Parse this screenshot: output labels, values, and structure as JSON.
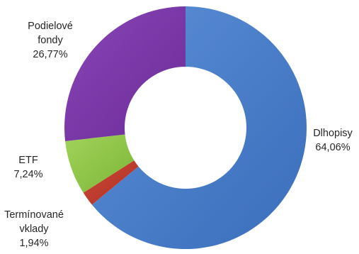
{
  "chart_data": {
    "type": "pie",
    "donut": true,
    "start_angle_deg": 0,
    "direction": "clockwise",
    "slices": [
      {
        "label": "Dlhopisy",
        "value": 64.06,
        "value_text": "64,06%",
        "color": "#4a7fca"
      },
      {
        "label": "Termínované vklady",
        "value": 1.94,
        "value_text": "1,94%",
        "color": "#c0392b"
      },
      {
        "label": "ETF",
        "value": 7.24,
        "value_text": "7,24%",
        "color": "#8cc63f"
      },
      {
        "label": "Podielové fondy",
        "value": 26.77,
        "value_text": "26,77%",
        "color": "#7b35a8"
      }
    ],
    "labels_display": {
      "bonds": [
        "Dlhopisy",
        "64,06%"
      ],
      "term": [
        "Termínované",
        "vklady",
        "1,94%"
      ],
      "etf": [
        "ETF",
        "7,24%"
      ],
      "funds": [
        "Podielové",
        "fondy",
        "26,77%"
      ]
    }
  }
}
